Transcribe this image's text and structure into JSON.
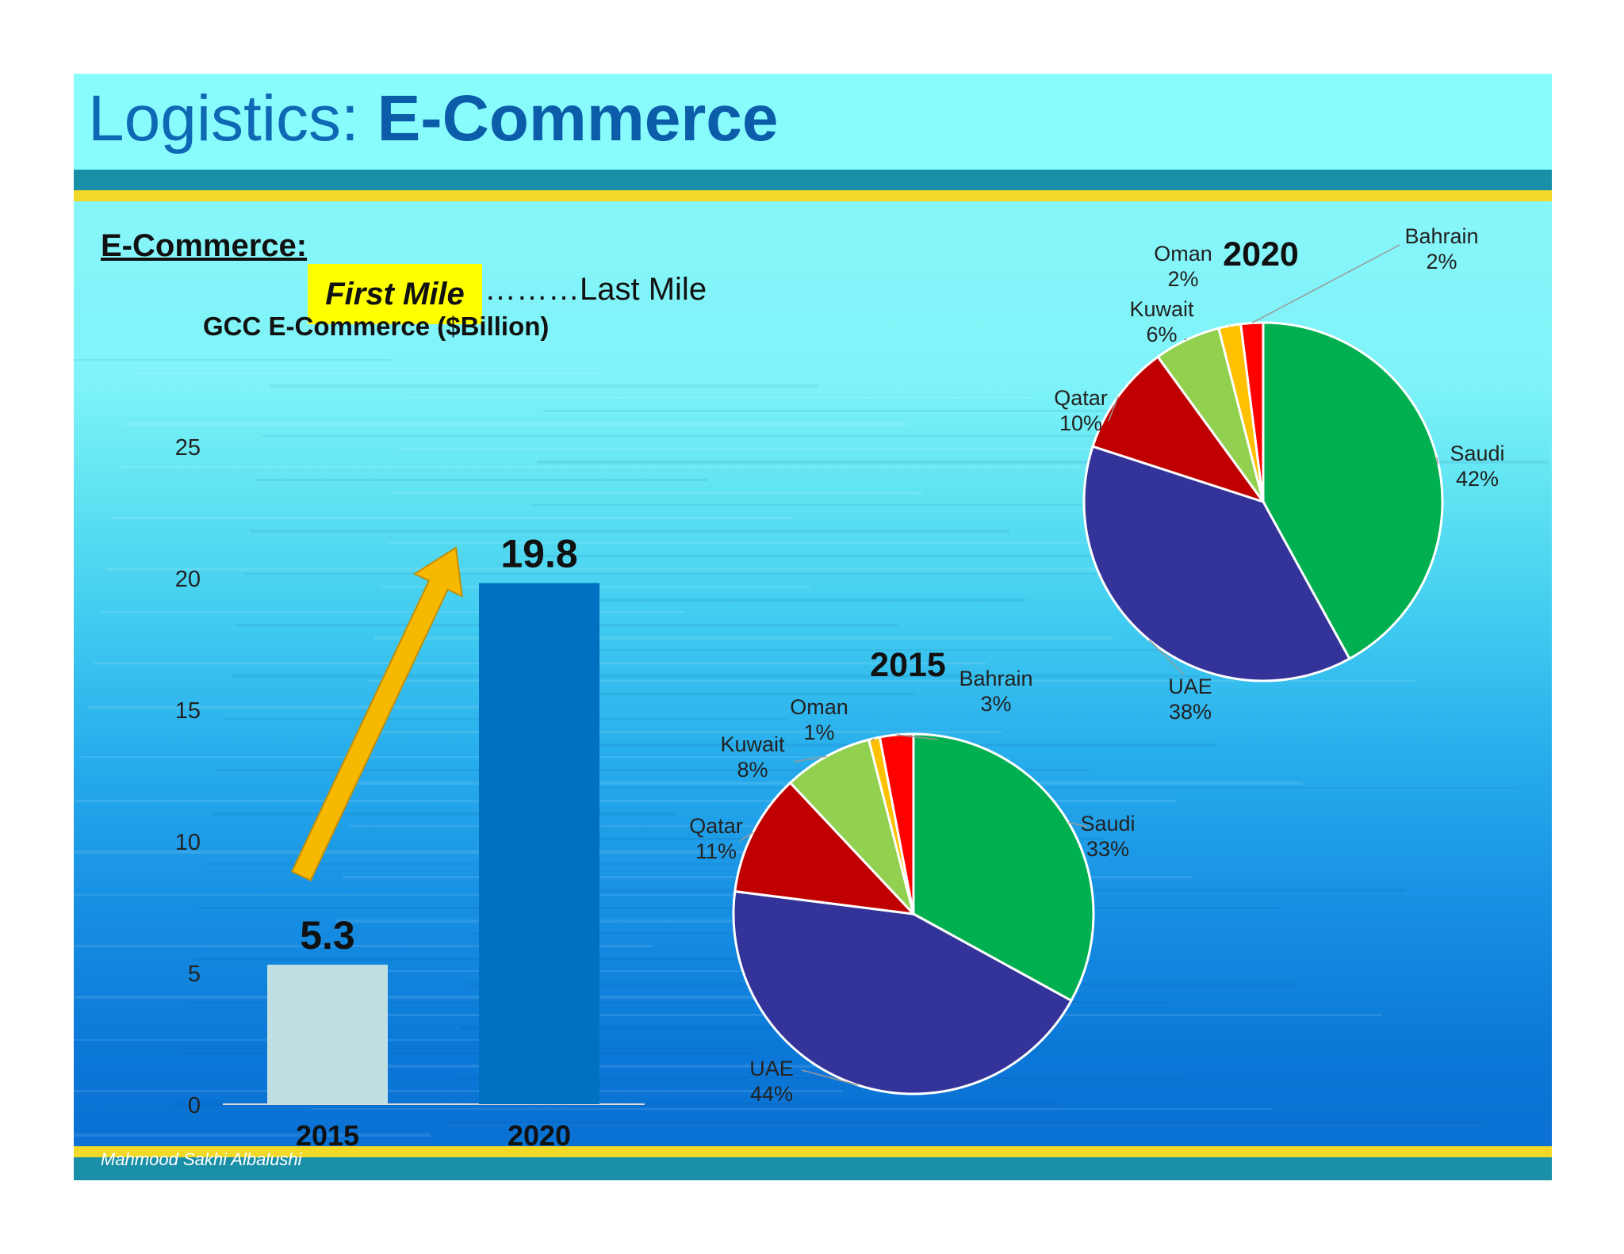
{
  "slide": {
    "title_light": "Logistics: ",
    "title_bold": "E-Commerce",
    "section_label": "E-Commerce:",
    "first_mile": "First Mile",
    "last_mile": "………Last Mile",
    "author": "Mahmood Sakhi Albalushi",
    "colors": {
      "header": "#88fbfd",
      "band_teal": "#1a8fa8",
      "band_yellow": "#f2d827",
      "highlight": "#ffff00",
      "arrow": "#f7b800"
    }
  },
  "chart_data": [
    {
      "type": "bar",
      "title": "GCC E-Commerce ($Billion)",
      "categories": [
        "2015",
        "2020"
      ],
      "values": [
        5.3,
        19.8
      ],
      "data_labels": [
        "5.3",
        "19.8"
      ],
      "bar_colors": [
        "#c0dfe3",
        "#0070c0"
      ],
      "ylim": [
        0,
        25
      ],
      "yticks": [
        0,
        5,
        10,
        15,
        20,
        25
      ],
      "grid": false,
      "annotation": "upward-arrow"
    },
    {
      "type": "pie",
      "title": "2015",
      "slices": [
        {
          "label": "Saudi",
          "value": 33,
          "text": "33%",
          "color": "#00b050"
        },
        {
          "label": "UAE",
          "value": 44,
          "text": "44%",
          "color": "#333399"
        },
        {
          "label": "Qatar",
          "value": 11,
          "text": "11%",
          "color": "#c00000"
        },
        {
          "label": "Kuwait",
          "value": 8,
          "text": "8%",
          "color": "#92d050"
        },
        {
          "label": "Oman",
          "value": 1,
          "text": "1%",
          "color": "#ffc000"
        },
        {
          "label": "Bahrain",
          "value": 3,
          "text": "3%",
          "color": "#ff0000"
        }
      ]
    },
    {
      "type": "pie",
      "title": "2020",
      "slices": [
        {
          "label": "Saudi",
          "value": 42,
          "text": "42%",
          "color": "#00b050"
        },
        {
          "label": "UAE",
          "value": 38,
          "text": "38%",
          "color": "#333399"
        },
        {
          "label": "Qatar",
          "value": 10,
          "text": "10%",
          "color": "#c00000"
        },
        {
          "label": "Kuwait",
          "value": 6,
          "text": "6%",
          "color": "#92d050"
        },
        {
          "label": "Oman",
          "value": 2,
          "text": "2%",
          "color": "#ffc000"
        },
        {
          "label": "Bahrain",
          "value": 2,
          "text": "2%",
          "color": "#ff0000"
        }
      ]
    }
  ]
}
